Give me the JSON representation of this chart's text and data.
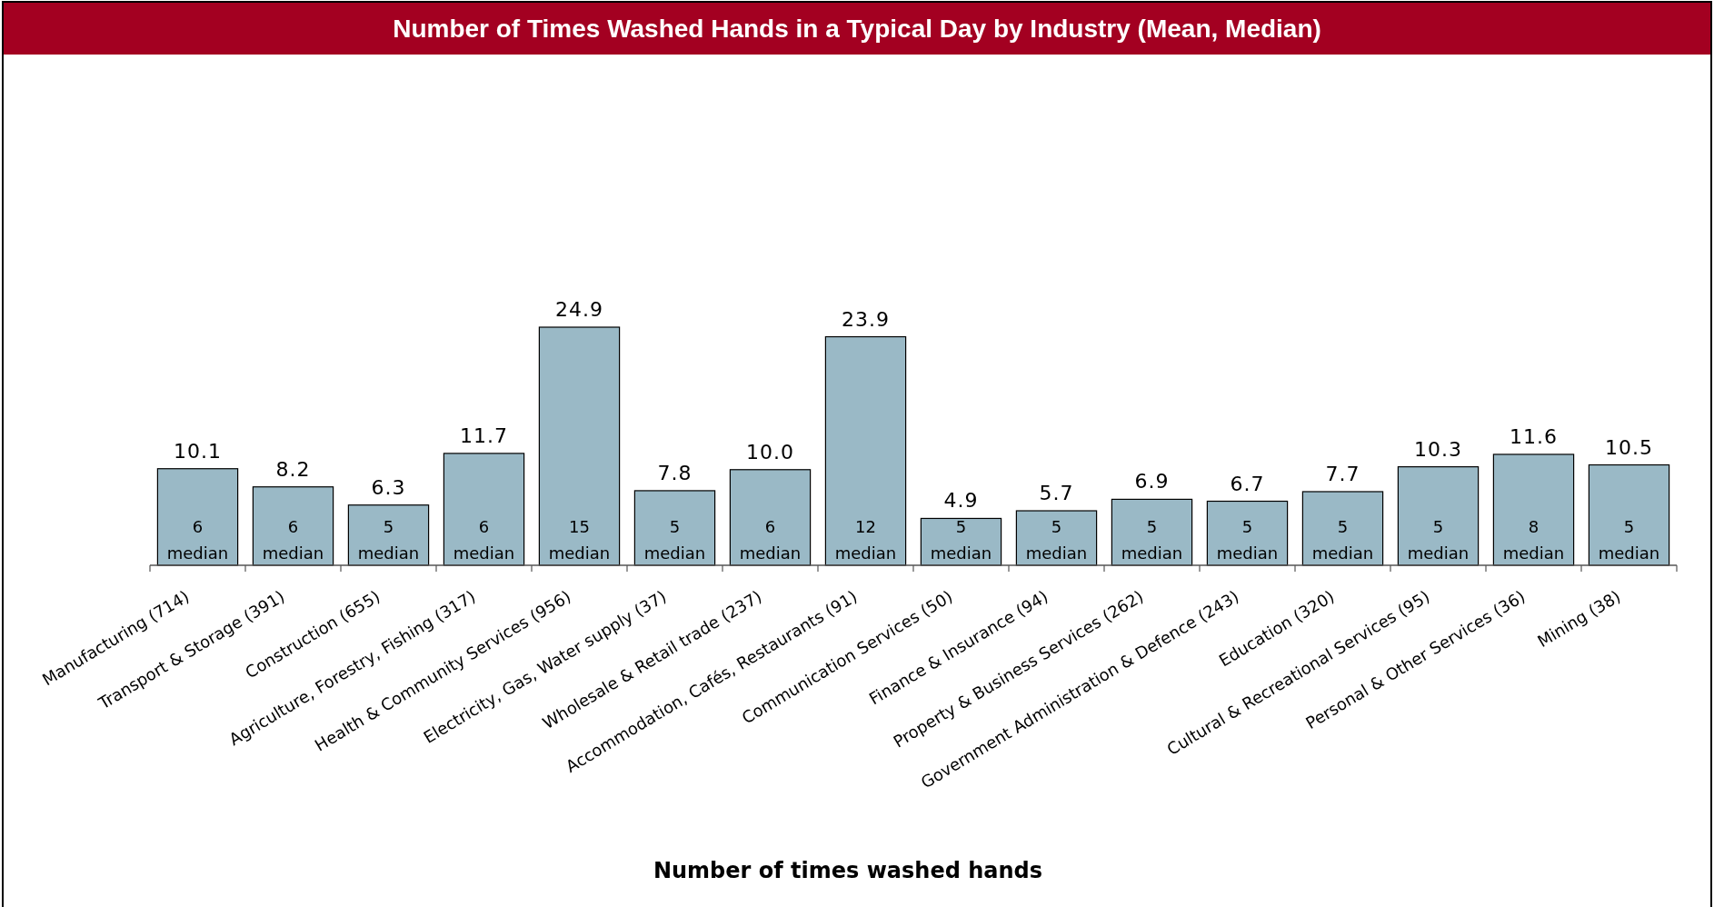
{
  "chart_data": {
    "type": "bar",
    "title": "Number of Times Washed Hands in a Typical Day by Industry (Mean, Median)",
    "xlabel": "Number of times washed hands",
    "categories": [
      "Manufacturing (714)",
      "Transport & Storage (391)",
      "Construction (655)",
      "Agriculture, Forestry, Fishing (317)",
      "Health & Community Services (956)",
      "Electricity, Gas, Water supply (37)",
      "Wholesale & Retail trade (237)",
      "Accommodation, Cafés, Restaurants (91)",
      "Communication Services (50)",
      "Finance & Insurance (94)",
      "Property & Business Services (262)",
      "Government Administration & Defence (243)",
      "Education (320)",
      "Cultural & Recreational Services (95)",
      "Personal & Other Services (36)",
      "Mining (38)"
    ],
    "values": [
      10.1,
      8.2,
      6.3,
      11.7,
      24.9,
      7.8,
      10.0,
      23.9,
      4.9,
      5.7,
      6.9,
      6.7,
      7.7,
      10.3,
      11.6,
      10.5
    ],
    "value_labels": [
      "10.1",
      "8.2",
      "6.3",
      "11.7",
      "24.9",
      "7.8",
      "10.0",
      "23.9",
      "4.9",
      "5.7",
      "6.9",
      "6.7",
      "7.7",
      "10.3",
      "11.6",
      "10.5"
    ],
    "color": "#9ab9c6",
    "annotations": [
      "6 median",
      "6 median",
      "5 median",
      "6 median",
      "15 median",
      "5 median",
      "6 median",
      "12 median",
      "5 median",
      "5 median",
      "5 median",
      "5 median",
      "5 median",
      "5 median",
      "8 median",
      "5 median"
    ],
    "tick_labels": "x"
  }
}
